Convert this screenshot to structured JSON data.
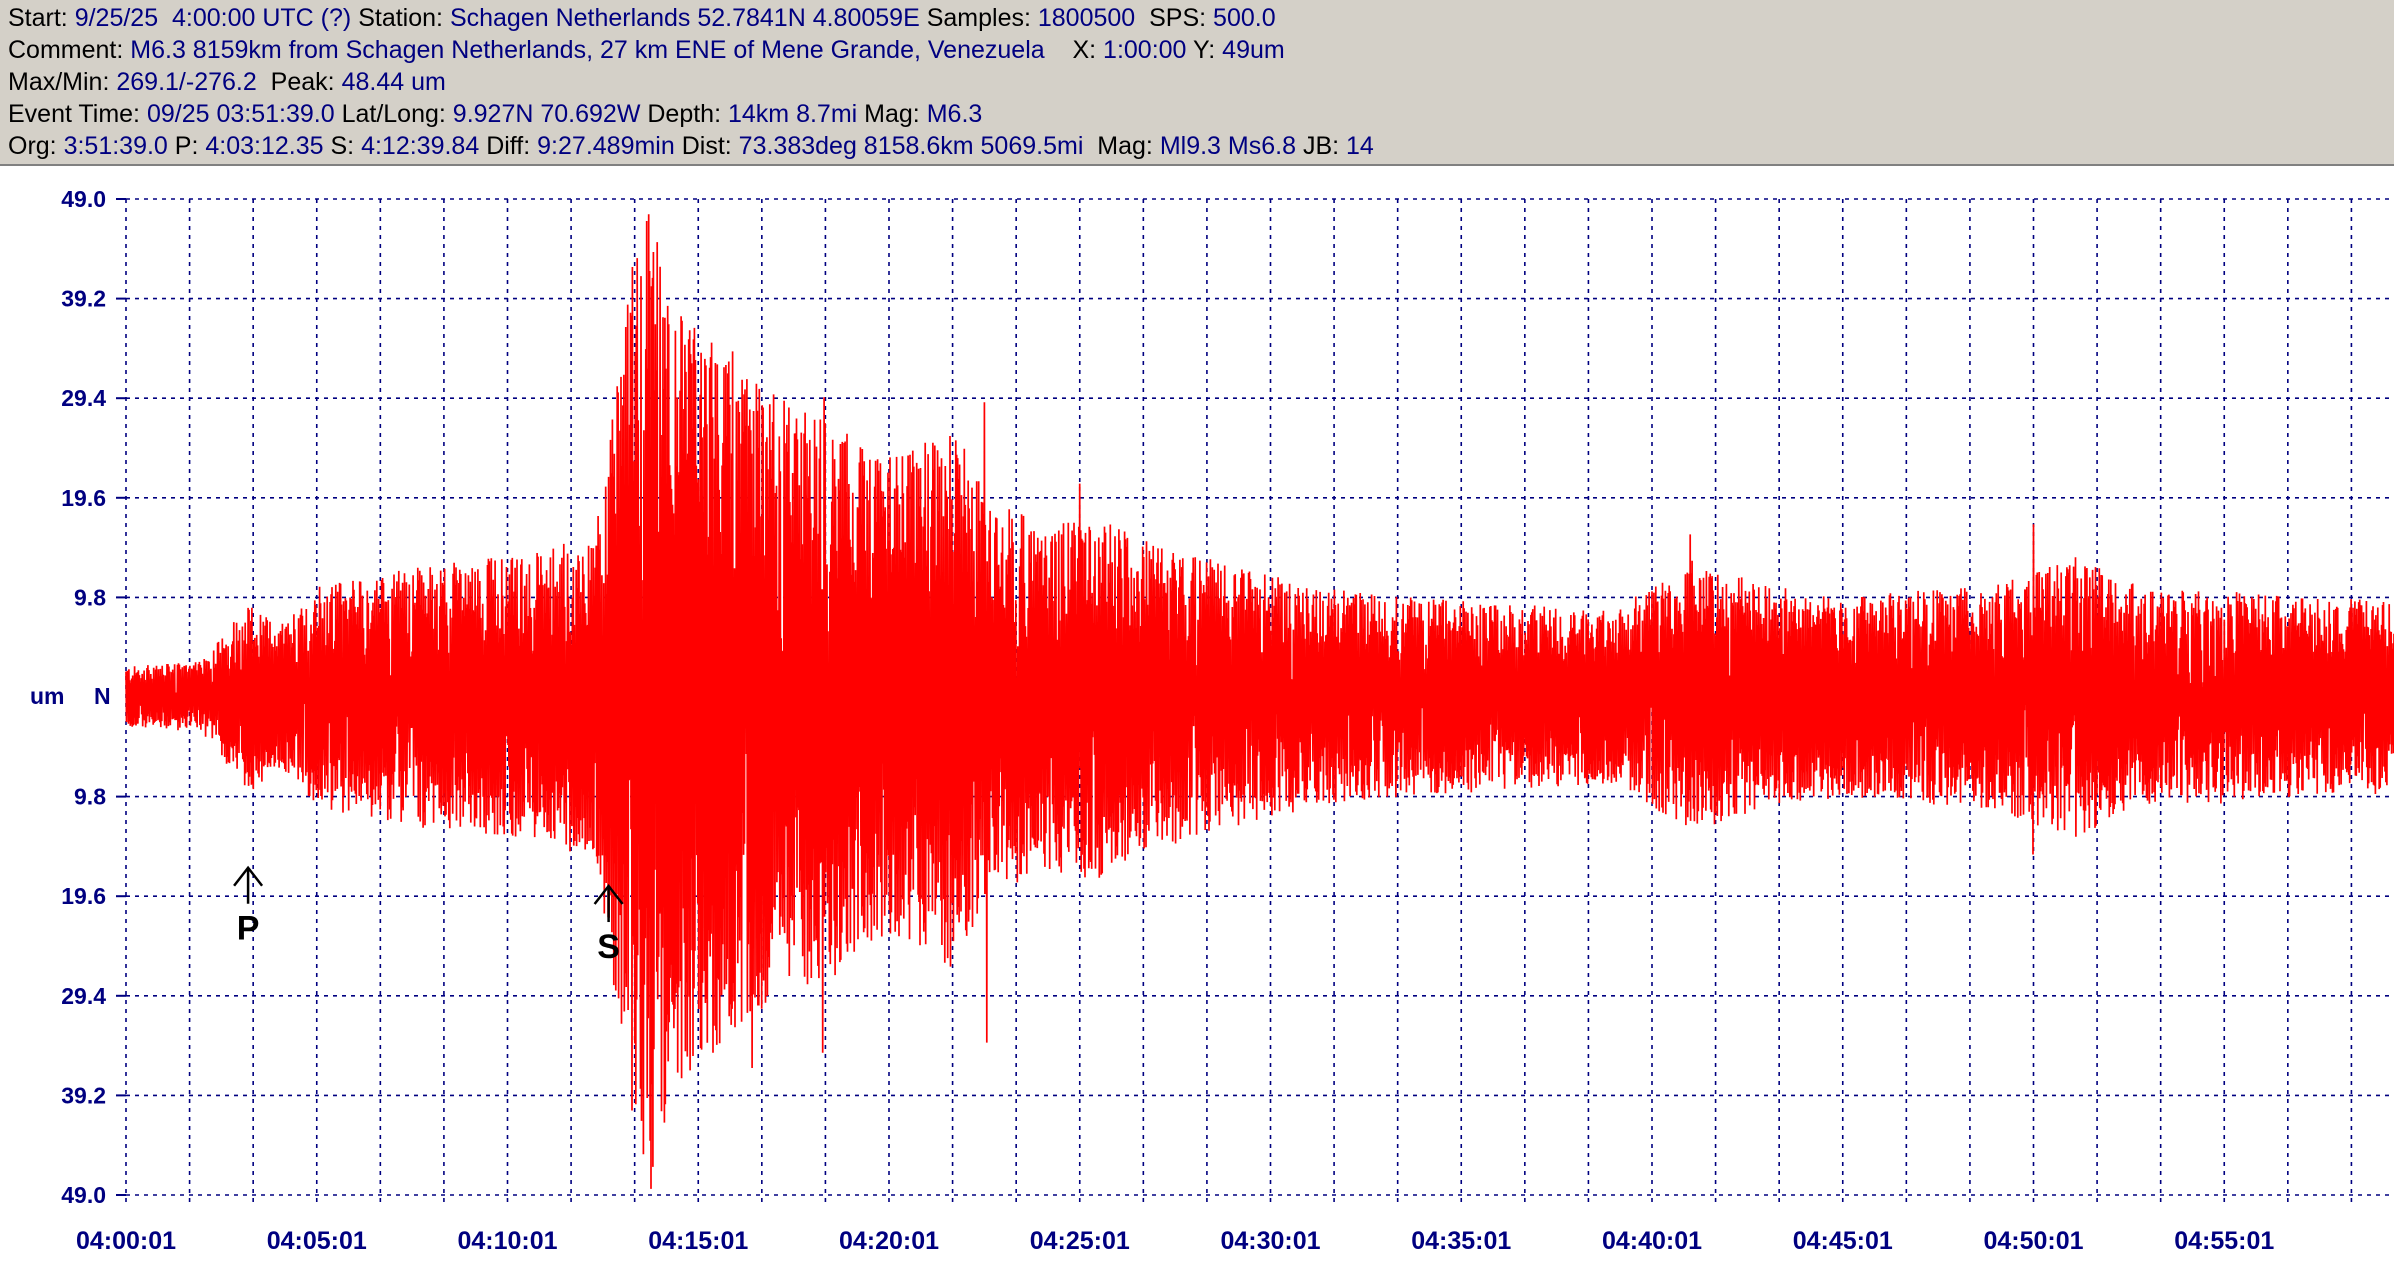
{
  "header": {
    "line1": {
      "start_label": "Start:",
      "start": "9/25/25  4:00:00 UTC (?)",
      "station_label": "Station:",
      "station": "Schagen Netherlands 52.7841N 4.80059E",
      "samples_label": "Samples:",
      "samples": "1800500",
      "sps_label": "SPS:",
      "sps": "500.0"
    },
    "line2": {
      "comment_label": "Comment:",
      "comment": "M6.3 8159km from Schagen Netherlands, 27 km ENE of Mene Grande, Venezuela",
      "x_label": "X:",
      "x": "1:00:00",
      "y_label": "Y:",
      "y": "49um"
    },
    "line3": {
      "maxmin_label": "Max/Min:",
      "maxmin": "269.1/-276.2",
      "peak_label": "Peak:",
      "peak": "48.44 um"
    },
    "line4": {
      "event_label": "Event Time:",
      "event": "09/25 03:51:39.0",
      "latlong_label": "Lat/Long:",
      "latlong": "9.927N 70.692W",
      "depth_label": "Depth:",
      "depth": "14km 8.7mi",
      "mag_label": "Mag:",
      "mag": "M6.3"
    },
    "line5": {
      "org_label": "Org:",
      "org": "3:51:39.0",
      "p_label": "P:",
      "p": "4:03:12.35",
      "s_label": "S:",
      "s": "4:12:39.84",
      "diff_label": "Diff:",
      "diff": "9:27.489min",
      "dist_label": "Dist:",
      "dist": "73.383deg 8158.6km 5069.5mi",
      "mag2_label": "Mag:",
      "mag2": "Ml9.3 Ms6.8",
      "jb_label": "JB:",
      "jb": "14"
    }
  },
  "chart_data": {
    "type": "line",
    "y_unit_label": "um",
    "channel_label": "N",
    "y_ticks": [
      "49.0",
      "39.2",
      "29.4",
      "19.6",
      "9.8",
      "9.8",
      "19.6",
      "29.4",
      "39.2",
      "49.0"
    ],
    "y_tick_values": [
      49.0,
      39.2,
      29.4,
      19.6,
      9.8,
      -9.8,
      -19.6,
      -29.4,
      -39.2,
      -49.0
    ],
    "ylim": [
      -49.0,
      49.0
    ],
    "x_ticks": [
      "04:00:01",
      "04:05:01",
      "04:10:01",
      "04:15:01",
      "04:20:01",
      "04:25:01",
      "04:30:01",
      "04:35:01",
      "04:40:01",
      "04:45:01",
      "04:50:01",
      "04:55:01"
    ],
    "x_range_minutes": [
      0,
      59.5
    ],
    "grid": true,
    "trace_color": "#ff0000",
    "grid_color": "#000080",
    "markers": [
      {
        "label": "P",
        "minute": 3.2
      },
      {
        "label": "S",
        "minute": 12.65
      }
    ],
    "envelope": {
      "minutes": [
        0.0,
        2.0,
        3.2,
        4.0,
        5.0,
        7.0,
        9.0,
        10.5,
        12.3,
        12.7,
        13.3,
        13.7,
        14.5,
        15.5,
        16.5,
        17.5,
        18.5,
        19.5,
        20.5,
        21.8,
        22.5,
        24.0,
        25.5,
        27.0,
        29.0,
        31.0,
        33.0,
        35.0,
        37.0,
        39.0,
        41.0,
        43.0,
        45.0,
        47.0,
        49.0,
        51.0,
        53.0,
        55.0,
        57.0,
        59.5
      ],
      "amplitude": [
        3.0,
        3.5,
        9.5,
        7.0,
        11.0,
        12.5,
        13.5,
        14.0,
        16.0,
        26.0,
        44.0,
        48.4,
        38.0,
        35.0,
        31.0,
        29.0,
        28.0,
        24.0,
        24.0,
        27.0,
        20.0,
        17.0,
        18.0,
        15.0,
        13.0,
        11.0,
        10.0,
        9.5,
        9.0,
        8.5,
        13.5,
        11.0,
        9.8,
        10.5,
        11.0,
        14.0,
        10.5,
        10.5,
        9.8,
        9.5
      ]
    },
    "peaks": [
      {
        "minute": 13.7,
        "value": 47.5
      },
      {
        "minute": 13.75,
        "value": -48.4
      },
      {
        "minute": 13.55,
        "value": -45.0
      },
      {
        "minute": 15.9,
        "value": 34.0
      },
      {
        "minute": 16.4,
        "value": -36.5
      },
      {
        "minute": 18.3,
        "value": 29.5
      },
      {
        "minute": 18.25,
        "value": -35.0
      },
      {
        "minute": 22.5,
        "value": 29.0
      },
      {
        "minute": 22.55,
        "value": -34.0
      },
      {
        "minute": 25.0,
        "value": 21.0
      },
      {
        "minute": 50.0,
        "value": 17.0
      },
      {
        "minute": 50.0,
        "value": -15.5
      },
      {
        "minute": 41.0,
        "value": 16.0
      }
    ]
  }
}
